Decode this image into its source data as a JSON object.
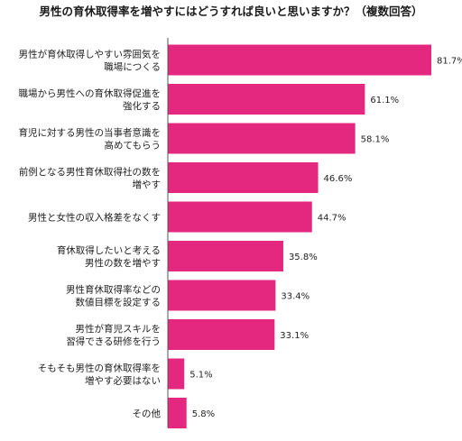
{
  "chart_data": {
    "type": "bar",
    "orientation": "horizontal",
    "title": "男性の育休取得率を増やすにはどうすれば良いと思いますか？（複数回答）",
    "bar_color": "#e5287f",
    "axis_color": "#555555",
    "value_suffix": "%",
    "xlim": [
      0,
      85
    ],
    "categories": [
      [
        "男性が育休取得しやすい雰囲気を",
        "職場につくる"
      ],
      [
        "職場から男性への育休取得促進を",
        "強化する"
      ],
      [
        "育児に対する男性の当事者意識を",
        "高めてもらう"
      ],
      [
        "前例となる男性育休取得社の数を",
        "増やす"
      ],
      [
        "男性と女性の収入格差をなくす"
      ],
      [
        "育休取得したいと考える",
        "男性の数を増やす"
      ],
      [
        "男性育休取得率などの",
        "数値目標を設定する"
      ],
      [
        "男性が育児スキルを",
        "習得できる研修を行う"
      ],
      [
        "そもそも男性の育休取得率を",
        "増やす必要はない"
      ],
      [
        "その他"
      ]
    ],
    "values": [
      81.7,
      61.1,
      58.1,
      46.6,
      44.7,
      35.8,
      33.4,
      33.1,
      5.1,
      5.8
    ]
  }
}
